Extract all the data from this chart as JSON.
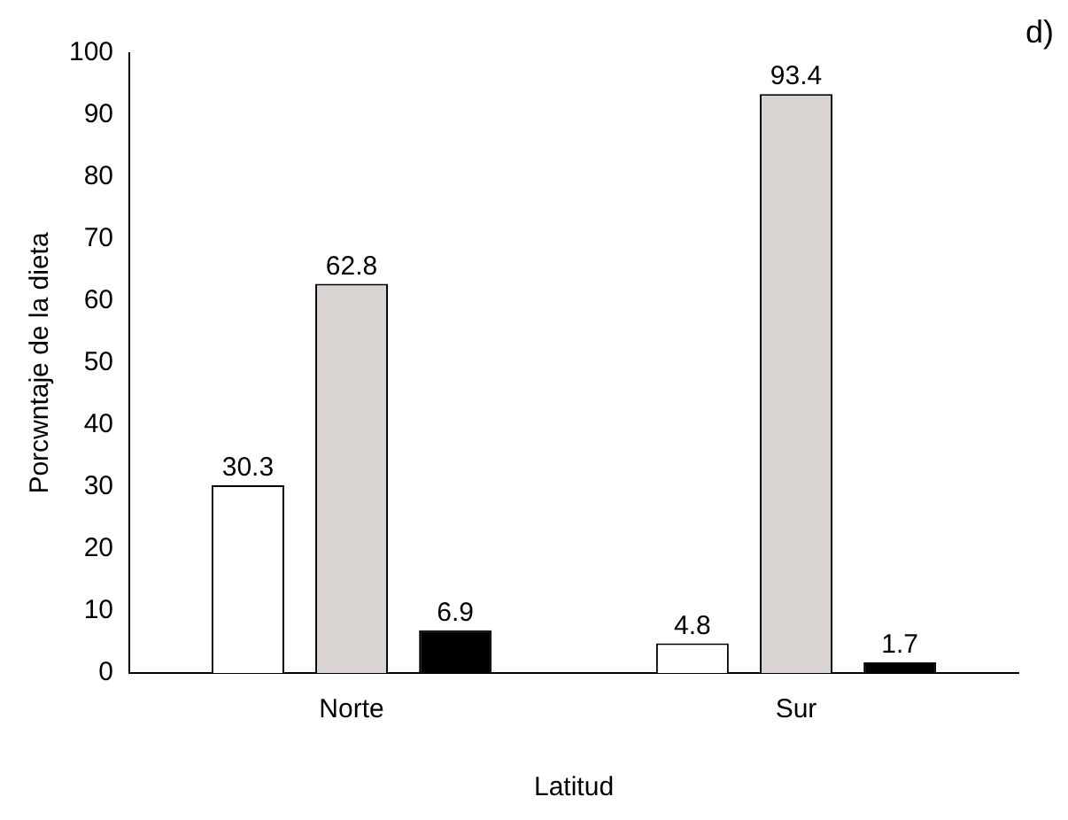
{
  "chart_data": {
    "type": "bar",
    "xlabel": "Latitud",
    "ylabel": "Porcwntaje de la dieta",
    "annotations": [
      "d)"
    ],
    "categories": [
      "Norte",
      "Sur"
    ],
    "series": [
      {
        "color": "#ffffff",
        "values": [
          30.3,
          4.8
        ]
      },
      {
        "color": "#d9d4d2",
        "values": [
          62.8,
          93.4
        ]
      },
      {
        "color": "#000000",
        "values": [
          6.9,
          1.7
        ]
      }
    ],
    "ylim": [
      0,
      100
    ],
    "yticks": [
      0,
      10,
      20,
      30,
      40,
      50,
      60,
      70,
      80,
      90,
      100
    ],
    "grid": false,
    "legend": false,
    "data_labels": true
  }
}
